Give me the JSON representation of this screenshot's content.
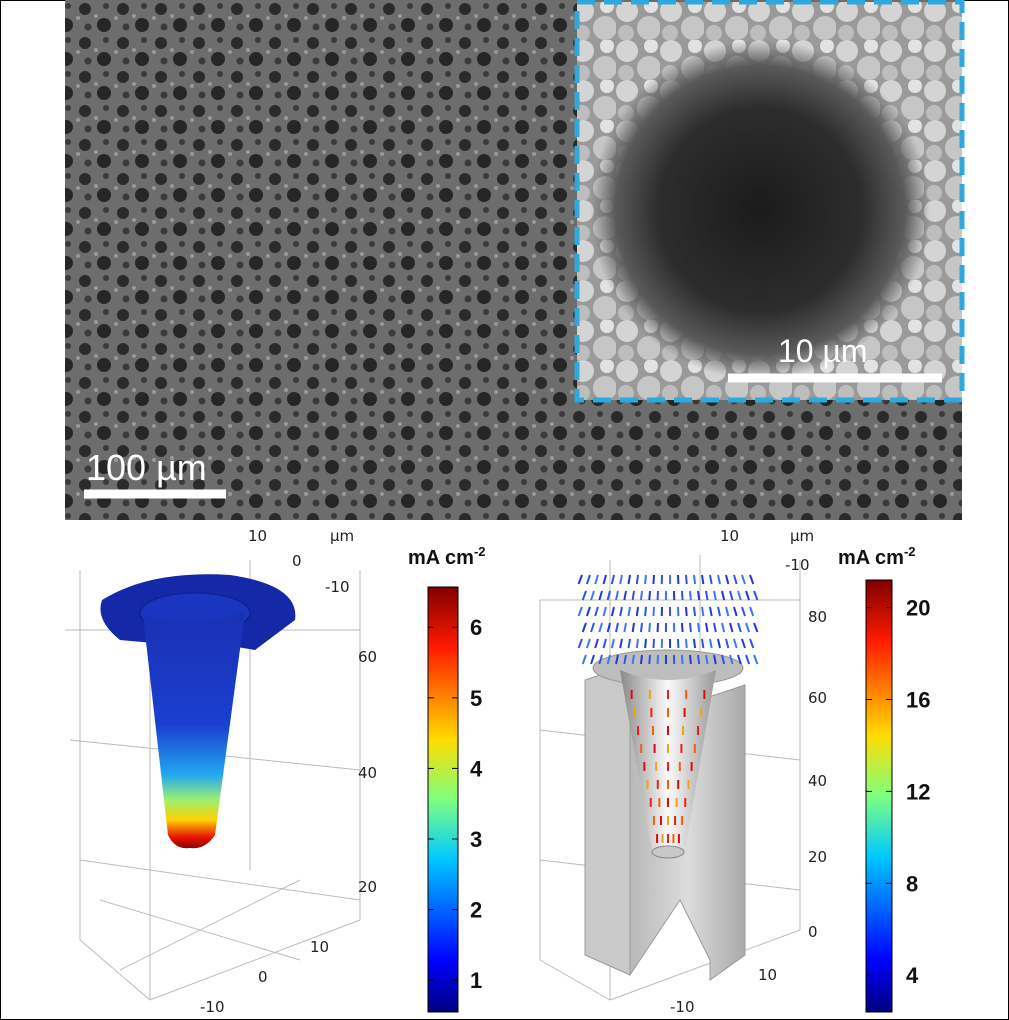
{
  "sem": {
    "scale_bar": "100 µm",
    "inset_scale_bar": "10 µm"
  },
  "panels": [
    {
      "top_ticks": [
        "10",
        "0",
        "-10"
      ],
      "unit": "µm",
      "vertical_ticks": [
        "60",
        "40",
        "20"
      ],
      "bottom_ticks": [
        "10",
        "0",
        "-10"
      ],
      "colorbar": {
        "title": "mA cm",
        "title_sup": "-2",
        "clim": [
          0.55,
          6.57
        ],
        "ticks": [
          1,
          2,
          3,
          4,
          5,
          6
        ]
      }
    },
    {
      "top_ticks": [
        "10",
        "-10"
      ],
      "unit": "µm",
      "vertical_ticks": [
        "80",
        "60",
        "40",
        "20",
        "0"
      ],
      "bottom_ticks": [
        "10",
        "-10"
      ],
      "colorbar": {
        "title": "mA cm",
        "title_sup": "-2",
        "clim": [
          2.4,
          21.2
        ],
        "ticks": [
          4,
          8,
          12,
          16,
          20
        ]
      }
    }
  ]
}
